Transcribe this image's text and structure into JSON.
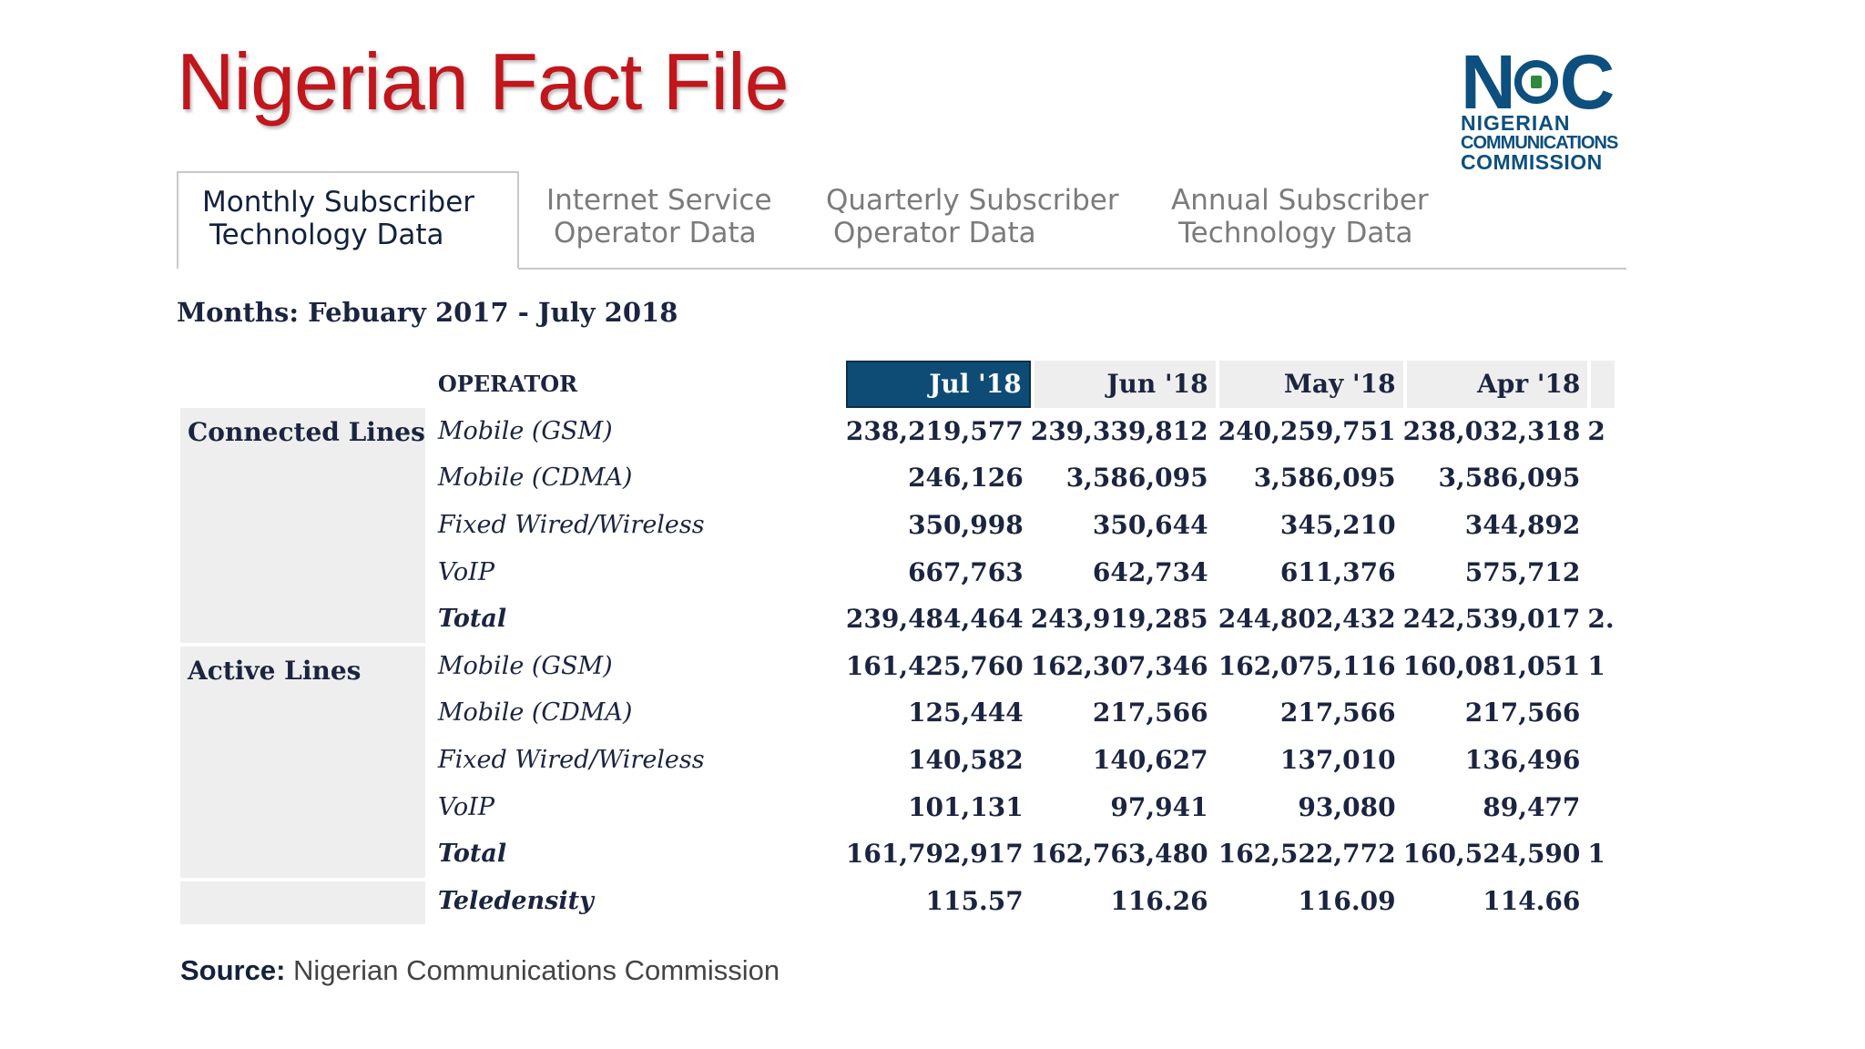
{
  "title": "Nigerian Fact File",
  "logo": {
    "mark_left": "N",
    "mark_right": "C",
    "line1": "NIGERIAN",
    "line2": "COMMUNICATIONS",
    "line3": "COMMISSION"
  },
  "tabs": [
    {
      "line1": "Monthly Subscriber",
      "line2": "Technology Data",
      "active": true
    },
    {
      "line1": "Internet Service",
      "line2": "Operator Data",
      "active": false
    },
    {
      "line1": "Quarterly Subscriber",
      "line2": "Operator Data",
      "active": false
    },
    {
      "line1": "Annual Subscriber",
      "line2": "Technology Data",
      "active": false
    }
  ],
  "months_label": "Months: Febuary 2017 - July 2018",
  "table": {
    "operator_header": "OPERATOR",
    "months": [
      "Jul '18",
      "Jun '18",
      "May '18",
      "Apr '18"
    ],
    "selected_month": "Jul '18",
    "groups": [
      {
        "label": "Connected Lines",
        "rows": [
          {
            "op": "Mobile (GSM)",
            "values": [
              "238,219,577",
              "239,339,812",
              "240,259,751",
              "238,032,318"
            ],
            "clipped": "2"
          },
          {
            "op": "Mobile (CDMA)",
            "values": [
              "246,126",
              "3,586,095",
              "3,586,095",
              "3,586,095"
            ],
            "clipped": ""
          },
          {
            "op": "Fixed Wired/Wireless",
            "values": [
              "350,998",
              "350,644",
              "345,210",
              "344,892"
            ],
            "clipped": ""
          },
          {
            "op": "VoIP",
            "values": [
              "667,763",
              "642,734",
              "611,376",
              "575,712"
            ],
            "clipped": ""
          },
          {
            "op": "Total",
            "values": [
              "239,484,464",
              "243,919,285",
              "244,802,432",
              "242,539,017"
            ],
            "clipped": "2."
          }
        ]
      },
      {
        "label": "Active Lines",
        "rows": [
          {
            "op": "Mobile (GSM)",
            "values": [
              "161,425,760",
              "162,307,346",
              "162,075,116",
              "160,081,051"
            ],
            "clipped": "1"
          },
          {
            "op": "Mobile (CDMA)",
            "values": [
              "125,444",
              "217,566",
              "217,566",
              "217,566"
            ],
            "clipped": ""
          },
          {
            "op": "Fixed Wired/Wireless",
            "values": [
              "140,582",
              "140,627",
              "137,010",
              "136,496"
            ],
            "clipped": ""
          },
          {
            "op": "VoIP",
            "values": [
              "101,131",
              "97,941",
              "93,080",
              "89,477"
            ],
            "clipped": ""
          },
          {
            "op": "Total",
            "values": [
              "161,792,917",
              "162,763,480",
              "162,522,772",
              "160,524,590"
            ],
            "clipped": "1"
          }
        ]
      }
    ],
    "teledensity": {
      "op": "Teledensity",
      "values": [
        "115.57",
        "116.26",
        "116.09",
        "114.66"
      ]
    }
  },
  "source": {
    "label": "Source:",
    "text": "Nigerian Communications Commission"
  },
  "colors": {
    "title": "#c0161c",
    "brand": "#0d4f7e",
    "selected_header": "#0f4c75",
    "shade": "#eeeeee"
  }
}
